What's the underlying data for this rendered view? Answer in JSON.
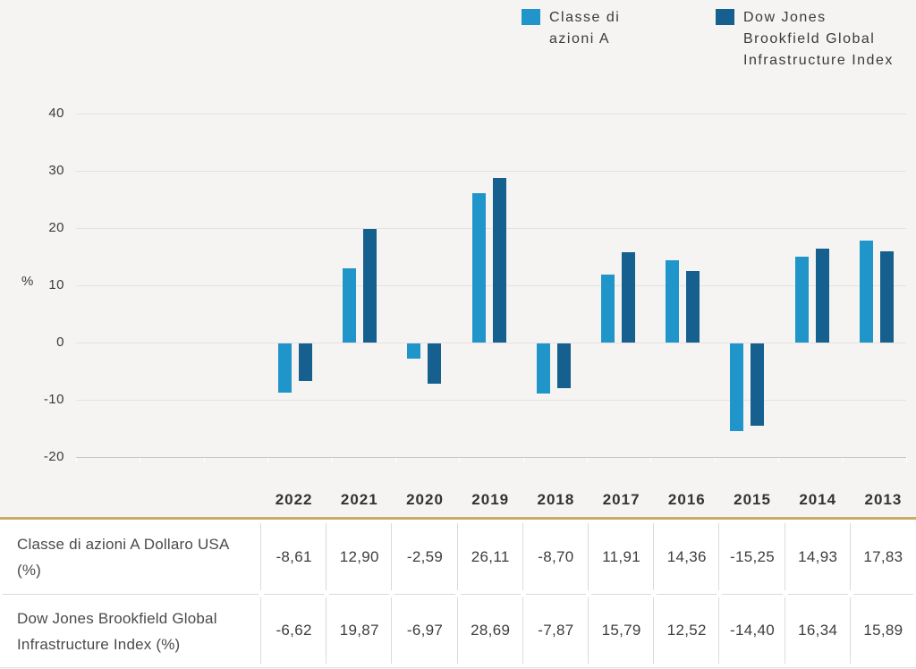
{
  "legend": {
    "items": [
      {
        "label": "Classe di azioni A",
        "color": "#2095C9"
      },
      {
        "label": "Dow Jones Brookfield Global Infrastructure Index",
        "color": "#15608E"
      }
    ]
  },
  "chart_data": {
    "type": "bar",
    "categories": [
      "2022",
      "2021",
      "2020",
      "2019",
      "2018",
      "2017",
      "2016",
      "2015",
      "2014",
      "2013"
    ],
    "series": [
      {
        "name": "Classe di azioni A",
        "color": "#2095C9",
        "values": [
          -8.61,
          12.9,
          -2.59,
          26.11,
          -8.7,
          11.91,
          14.36,
          -15.25,
          14.93,
          17.83
        ]
      },
      {
        "name": "Dow Jones Brookfield Global Infrastructure Index",
        "color": "#15608E",
        "values": [
          -6.62,
          19.87,
          -6.97,
          28.69,
          -7.87,
          15.79,
          12.52,
          -14.4,
          16.34,
          15.89
        ]
      }
    ],
    "ylabel": "%",
    "yticks": [
      "40",
      "30",
      "20",
      "10",
      "0",
      "-10",
      "-20"
    ],
    "ylim": [
      -20,
      40
    ],
    "grid": true,
    "legend_position": "top-right"
  },
  "table": {
    "column_headers": [
      "2022",
      "2021",
      "2020",
      "2019",
      "2018",
      "2017",
      "2016",
      "2015",
      "2014",
      "2013"
    ],
    "rows": [
      {
        "label": "Classe di azioni A Dollaro USA (%)",
        "values": [
          "-8,61",
          "12,90",
          "-2,59",
          "26,11",
          "-8,70",
          "11,91",
          "14,36",
          "-15,25",
          "14,93",
          "17,83"
        ]
      },
      {
        "label": "Dow Jones Brookfield Global Infrastructure Index (%)",
        "values": [
          "-6,62",
          "19,87",
          "-6,97",
          "28,69",
          "-7,87",
          "15,79",
          "12,52",
          "-14,40",
          "16,34",
          "15,89"
        ]
      }
    ]
  },
  "colors": {
    "background": "#f5f4f2",
    "series_a": "#2095C9",
    "series_b": "#15608E",
    "gridline": "#e4e3e1",
    "axis": "#c9c7c5",
    "gold_rule": "#c8ab64",
    "cell_border": "#dbdad8"
  }
}
